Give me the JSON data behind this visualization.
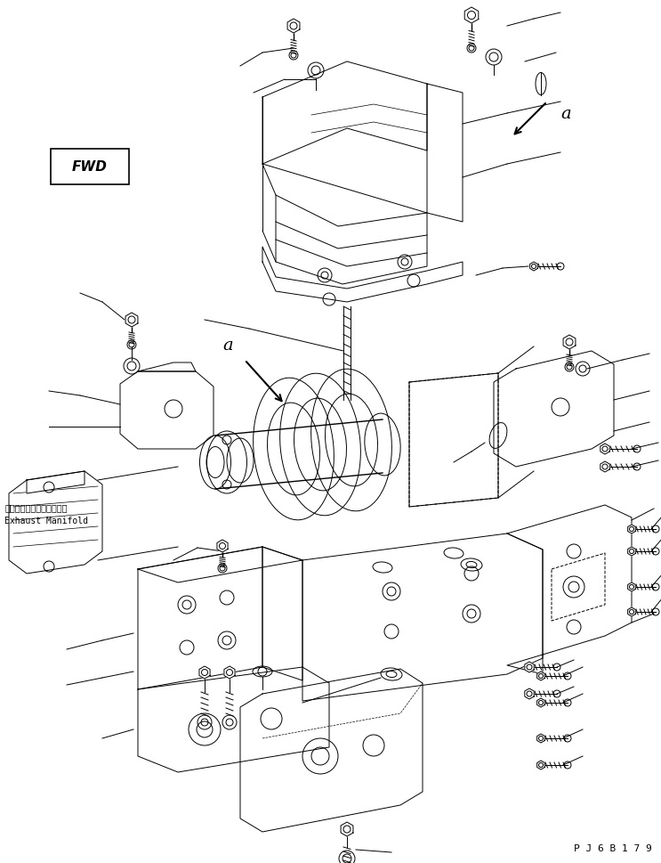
{
  "background_color": "#ffffff",
  "line_color": "#000000",
  "fig_width": 7.43,
  "fig_height": 9.7,
  "dpi": 100,
  "watermark": "P J 6 B 1 7 9",
  "label_a1": "a",
  "label_a2": "a",
  "fwd_text": "FWD",
  "exhaust_jp": "エキゾーストマニホールド",
  "exhaust_en": "Exhaust Manifold"
}
